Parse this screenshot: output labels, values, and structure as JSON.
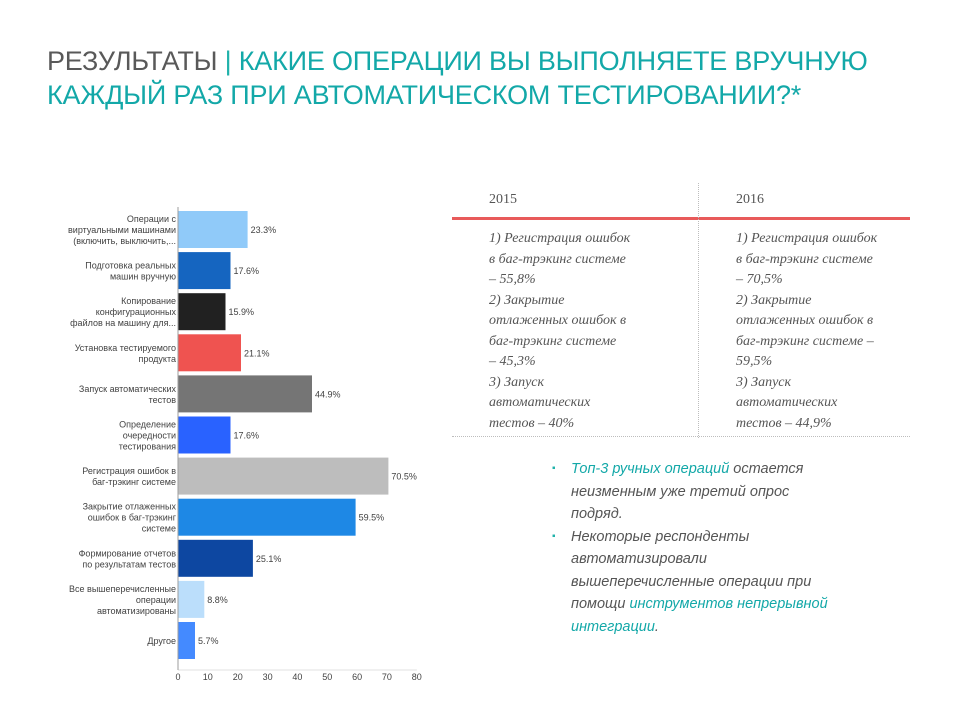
{
  "title": {
    "part1": "РЕЗУЛЬТАТЫ",
    "separator": "|",
    "part2_line1": "КАКИЕ ОПЕРАЦИИ ВЫ ВЫПОЛНЯЕТЕ ВРУЧНУЮ",
    "part2_line2": "КАЖДЫЙ РАЗ ПРИ АВТОМАТИЧЕСКОМ ТЕСТИРОВАНИИ?*"
  },
  "chart_data": {
    "type": "bar",
    "orientation": "horizontal",
    "title": "",
    "xlabel": "",
    "ylabel": "",
    "xlim": [
      0,
      80
    ],
    "xticks": [
      0,
      10,
      20,
      30,
      40,
      50,
      60,
      70,
      80
    ],
    "grid": false,
    "legend": "none",
    "categories": [
      [
        "Операции с",
        "виртуальными машинами",
        "(включить, выключить,..."
      ],
      [
        "Подготовка реальных",
        "машин вручную"
      ],
      [
        "Копирование",
        "конфигурационных",
        "файлов на машину для..."
      ],
      [
        "Установка тестируемого",
        "продукта"
      ],
      [
        "Запуск автоматических",
        "тестов"
      ],
      [
        "Определение",
        "очередности",
        "тестирования"
      ],
      [
        "Регистрация ошибок в",
        "баг-трэкинг системе"
      ],
      [
        "Закрытие отлаженных",
        "ошибок в баг-трэкинг",
        "системе"
      ],
      [
        "Формирование отчетов",
        "по результатам тестов"
      ],
      [
        "Все вышеперечисленные",
        "операции",
        "автоматизированы"
      ],
      [
        "Другое"
      ]
    ],
    "values": [
      23.3,
      17.6,
      15.9,
      21.1,
      44.9,
      17.6,
      70.5,
      59.5,
      25.1,
      8.8,
      5.7
    ],
    "data_labels": [
      "23.3%",
      "17.6%",
      "15.9%",
      "21.1%",
      "44.9%",
      "17.6%",
      "70.5%",
      "59.5%",
      "25.1%",
      "8.8%",
      "5.7%"
    ],
    "colors": [
      "#90caf9",
      "#1565c0",
      "#212121",
      "#ef5350",
      "#757575",
      "#2962ff",
      "#bdbdbd",
      "#1e88e5",
      "#0d47a1",
      "#bbdefb",
      "#448aff"
    ]
  },
  "table": {
    "col2015": {
      "year": "2015",
      "lines": [
        "1) Регистрация ошибок",
        "в баг-трэкинг системе",
        "– 55,8%",
        "2) Закрытие",
        "отлаженных ошибок в",
        "баг-трэкинг системе",
        "– 45,3%",
        "3) Запуск",
        "автоматических",
        "тестов – 40%"
      ]
    },
    "col2016": {
      "year": "2016",
      "lines": [
        "1) Регистрация ошибок",
        "в баг-трэкинг системе",
        "– 70,5%",
        "2) Закрытие",
        "отлаженных ошибок в",
        "баг-трэкинг системе –",
        "59,5%",
        "3) Запуск",
        "автоматических",
        "тестов – 44,9%"
      ]
    }
  },
  "notes": {
    "bullet": "▪",
    "item1": {
      "highlight": "Топ-3 ручных операций",
      "rest": " остается неизменным уже третий опрос подряд."
    },
    "item2": {
      "before": "Некоторые респонденты автоматизировали вышеперечисленные операции при помощи ",
      "highlight": "инструментов непрерывной интеграции",
      "after": "."
    }
  }
}
